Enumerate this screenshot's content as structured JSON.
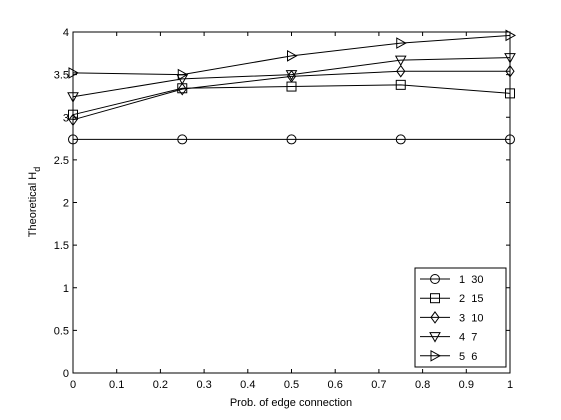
{
  "chart_data": {
    "type": "line",
    "x": [
      0,
      0.25,
      0.5,
      0.75,
      1
    ],
    "xlabel": "Prob. of edge connection",
    "ylabel_main": "Theoretical H",
    "ylabel_sub": "d",
    "xlim": [
      0,
      1
    ],
    "ylim": [
      0,
      4
    ],
    "xticks": [
      "0",
      "0.1",
      "0.2",
      "0.3",
      "0.4",
      "0.5",
      "0.6",
      "0.7",
      "0.8",
      "0.9",
      "1"
    ],
    "yticks": [
      "0",
      "0.5",
      "1",
      "1.5",
      "2",
      "2.5",
      "3",
      "3.5",
      "4"
    ],
    "grid": false,
    "legend_position": "bottom-right",
    "series": [
      {
        "name": "1  30",
        "marker": "circle",
        "values": [
          2.74,
          2.74,
          2.74,
          2.74,
          2.74
        ]
      },
      {
        "name": "2  15",
        "marker": "square",
        "values": [
          3.03,
          3.34,
          3.36,
          3.38,
          3.28
        ]
      },
      {
        "name": "3  10",
        "marker": "diamond",
        "values": [
          2.97,
          3.33,
          3.48,
          3.54,
          3.54
        ]
      },
      {
        "name": "4  7",
        "marker": "triangle-down",
        "values": [
          3.24,
          3.45,
          3.5,
          3.67,
          3.7
        ]
      },
      {
        "name": "5  6",
        "marker": "triangle-right",
        "values": [
          3.52,
          3.5,
          3.72,
          3.87,
          3.96
        ]
      }
    ],
    "line_color": "#000000"
  }
}
